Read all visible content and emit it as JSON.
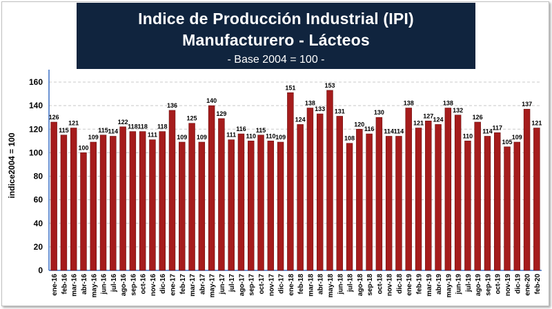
{
  "chart_data": {
    "type": "bar",
    "title": "Indice de Producción Industrial (IPI) Manufacturero - Lácteos",
    "subtitle": "- Base 2004 = 100 -",
    "xlabel": "",
    "ylabel": "indice2004 = 100",
    "ylim": [
      0,
      160
    ],
    "yticks": [
      0,
      20,
      40,
      60,
      80,
      100,
      120,
      140,
      160
    ],
    "grid": true,
    "legend": "none",
    "bar_color": "#a51c1c",
    "categories": [
      "ene-16",
      "feb-16",
      "mar-16",
      "abr-16",
      "may-16",
      "jun-16",
      "jul-16",
      "ago-16",
      "sep-16",
      "oct-16",
      "nov-16",
      "dic-16",
      "ene-17",
      "feb-17",
      "mar-17",
      "abr-17",
      "may-17",
      "jun-17",
      "jul-17",
      "ago-17",
      "sep-17",
      "oct-17",
      "nov-17",
      "dic-17",
      "ene-18",
      "feb-18",
      "mar-18",
      "abr-18",
      "may-18",
      "jun-18",
      "jul-18",
      "ago-18",
      "sep-18",
      "oct-18",
      "nov-18",
      "dic-18",
      "ene-19",
      "feb-19",
      "mar-19",
      "abr-19",
      "may-19",
      "jun-19",
      "jul-19",
      "ago-19",
      "sep-19",
      "oct-19",
      "nov-19",
      "dic-19",
      "ene-20",
      "feb-20"
    ],
    "values": [
      126,
      115,
      121,
      100,
      109,
      115,
      114,
      122,
      118,
      118,
      111,
      118,
      136,
      109,
      125,
      109,
      140,
      129,
      111,
      116,
      110,
      115,
      110,
      109,
      151,
      124,
      138,
      133,
      153,
      131,
      108,
      120,
      116,
      130,
      114,
      114,
      138,
      121,
      127,
      124,
      138,
      132,
      110,
      126,
      114,
      117,
      105,
      109,
      137,
      121
    ]
  }
}
